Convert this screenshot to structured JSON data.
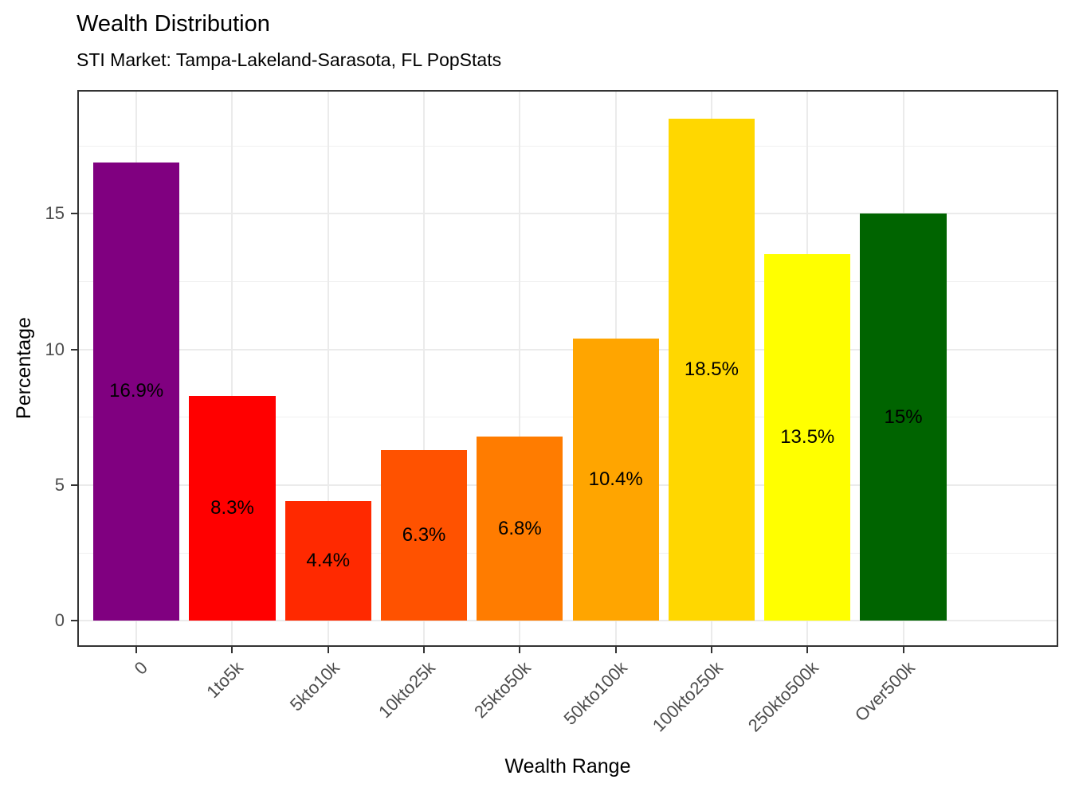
{
  "title": "Wealth Distribution",
  "subtitle": "STI Market: Tampa-Lakeland-Sarasota, FL PopStats",
  "chart_data": {
    "type": "bar",
    "title": "Wealth Distribution",
    "subtitle": "STI Market: Tampa-Lakeland-Sarasota, FL PopStats",
    "xlabel": "Wealth Range",
    "ylabel": "Percentage",
    "categories": [
      "0",
      "1to5k",
      "5kto10k",
      "10kto25k",
      "25kto50k",
      "50kto100k",
      "100kto250k",
      "250kto500k",
      "Over500k"
    ],
    "values": [
      16.9,
      8.3,
      4.4,
      6.3,
      6.8,
      10.4,
      18.5,
      13.5,
      15
    ],
    "bar_labels": [
      "16.9%",
      "8.3%",
      "4.4%",
      "6.3%",
      "6.8%",
      "10.4%",
      "18.5%",
      "13.5%",
      "15%"
    ],
    "bar_colors": [
      "#800080",
      "#FF0000",
      "#FF2900",
      "#FF5200",
      "#FF7C00",
      "#FFA500",
      "#FFD700",
      "#FFFF00",
      "#006400"
    ],
    "ylim": [
      -0.9,
      19.5
    ],
    "yticks": [
      0,
      5,
      10,
      15
    ],
    "ytick_labels": [
      "0",
      "5",
      "10",
      "15"
    ],
    "yticks_minor": [
      2.5,
      7.5,
      12.5,
      17.5
    ],
    "grid": true,
    "legend": "none",
    "grid_major_color": "#EBEBEB",
    "grid_minor_color": "#F0F0F0",
    "panel_border_color": "#333333",
    "tick_label_color": "#4D4D4D",
    "label_color": "#000000"
  }
}
